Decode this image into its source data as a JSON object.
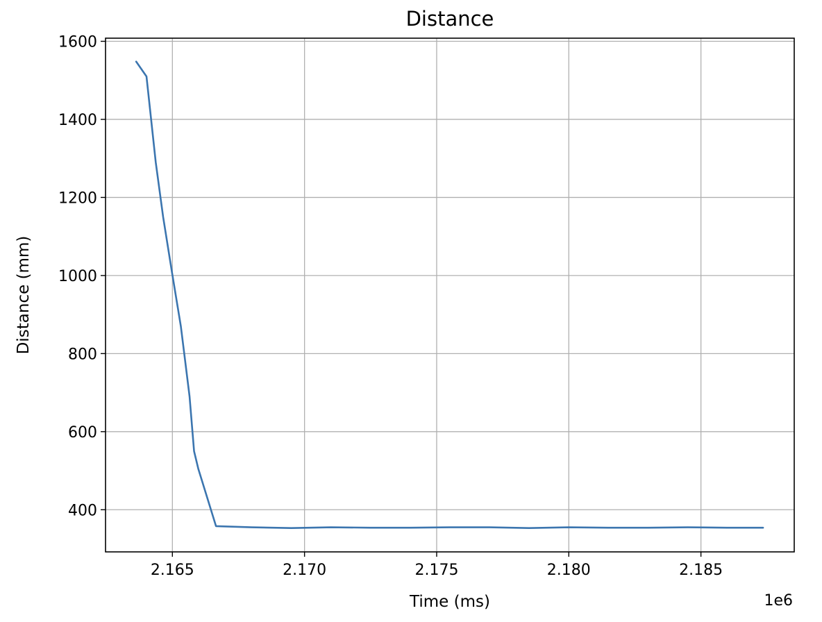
{
  "chart_data": {
    "type": "line",
    "title": "Distance",
    "xlabel": "Time (ms)",
    "ylabel": "Distance (mm)",
    "x_offset_label": "1e6",
    "xlim": [
      2.16247,
      2.18853
    ],
    "ylim": [
      292,
      1608
    ],
    "xticks": [
      2.165,
      2.17,
      2.175,
      2.18,
      2.185
    ],
    "xtick_labels": [
      "2.165",
      "2.170",
      "2.175",
      "2.180",
      "2.185"
    ],
    "yticks": [
      400,
      600,
      800,
      1000,
      1200,
      1400,
      1600
    ],
    "ytick_labels": [
      "400",
      "600",
      "800",
      "1000",
      "1200",
      "1400",
      "1600"
    ],
    "grid": true,
    "legend": null,
    "colors": {
      "line": "#3b75af",
      "grid": "#b0b0b0",
      "axes": "#000000"
    },
    "series": [
      {
        "x": [
          2.16363,
          2.16402,
          2.16437,
          2.16465,
          2.16498,
          2.16532,
          2.16565,
          2.16582,
          2.16598,
          2.16665,
          2.168,
          2.1695,
          2.171,
          2.1725,
          2.174,
          2.1755,
          2.177,
          2.1785,
          2.18,
          2.1815,
          2.183,
          2.1845,
          2.186,
          2.18735
        ],
        "y": [
          1548,
          1510,
          1290,
          1150,
          1010,
          870,
          690,
          550,
          505,
          358,
          355,
          353,
          355,
          354,
          354,
          355,
          355,
          353,
          355,
          354,
          354,
          355,
          354,
          354
        ]
      }
    ]
  }
}
